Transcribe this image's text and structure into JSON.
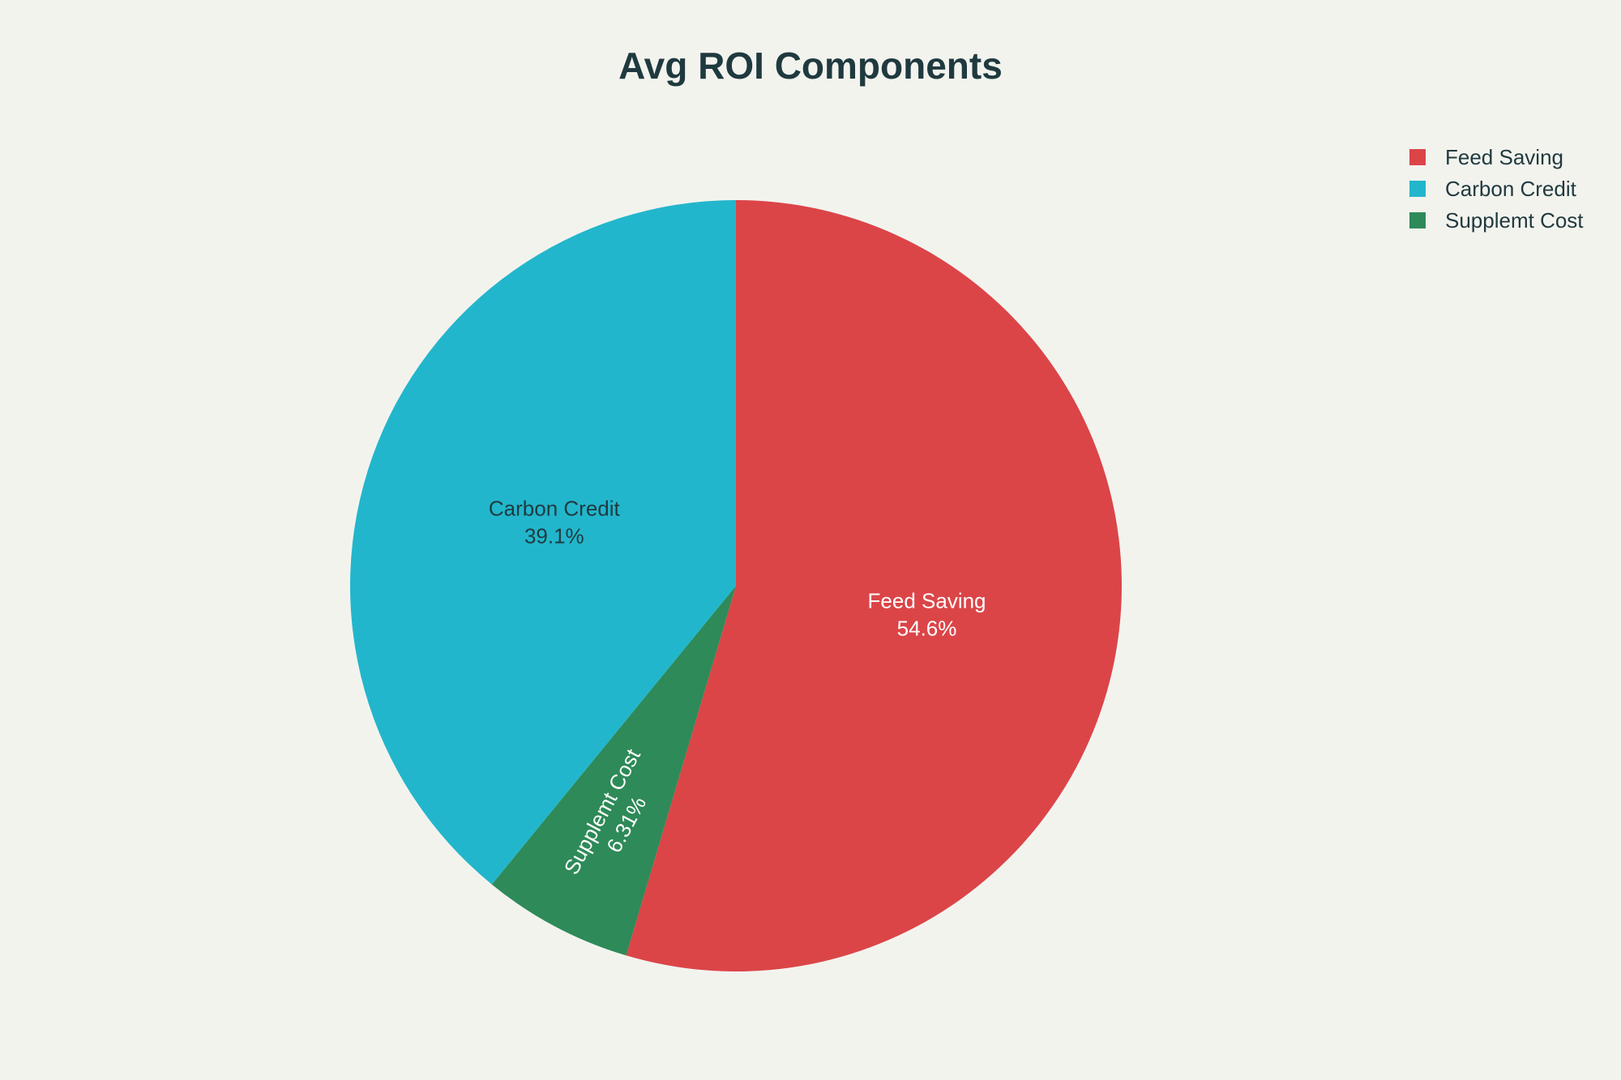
{
  "chart_data": {
    "type": "pie",
    "title": "Avg ROI Components",
    "slices": [
      {
        "label": "Feed Saving",
        "percent_label": "54.6%",
        "value": 54.6,
        "color": "#db4548",
        "text_color": "#ffffff"
      },
      {
        "label": "Supplemt Cost",
        "percent_label": "6.31%",
        "value": 6.31,
        "color": "#2e8a58",
        "text_color": "#ffffff"
      },
      {
        "label": "Carbon Credit",
        "percent_label": "39.1%",
        "value": 39.1,
        "color": "#22b6cc",
        "text_color": "#1f3a3f"
      }
    ],
    "legend": {
      "placement": "top-right",
      "items": [
        {
          "label": "Feed Saving",
          "color": "#db4548"
        },
        {
          "label": "Carbon Credit",
          "color": "#22b6cc"
        },
        {
          "label": "Supplemt Cost",
          "color": "#2e8a58"
        }
      ]
    },
    "direction": "clockwise",
    "start": "top"
  }
}
